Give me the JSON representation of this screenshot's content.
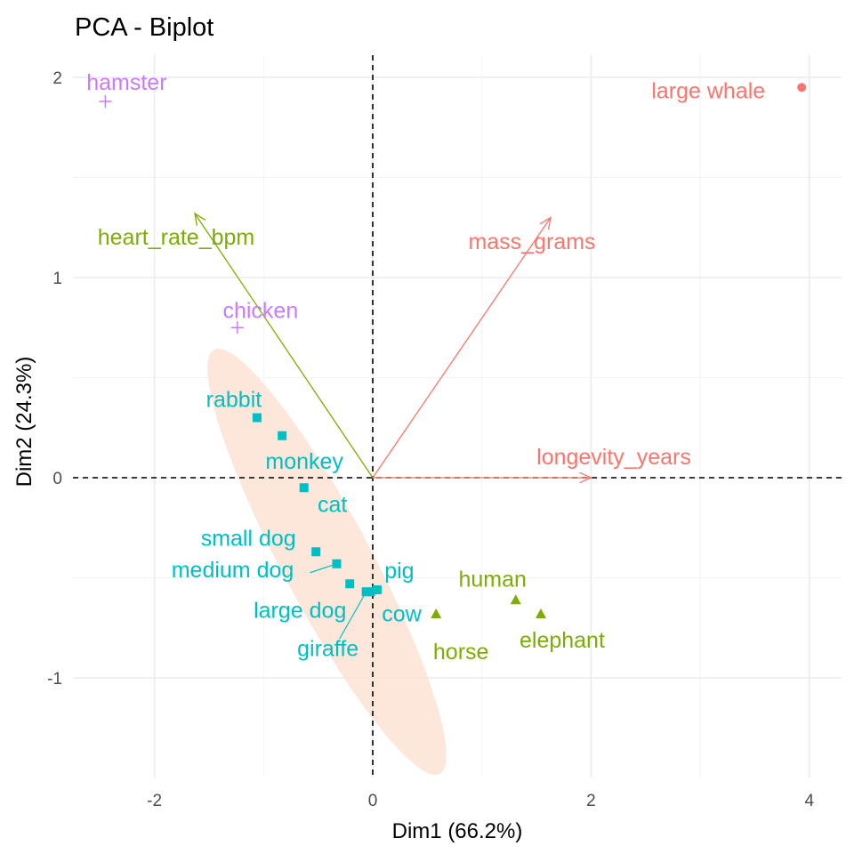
{
  "chart_data": {
    "type": "scatter",
    "title": "PCA - Biplot",
    "xlabel": "Dim1 (66.2%)",
    "ylabel": "Dim2 (24.3%)",
    "xlim": [
      -2.6,
      4.3
    ],
    "ylim": [
      -1.5,
      2.1
    ],
    "x_ticks": [
      -2,
      0,
      2,
      4
    ],
    "y_ticks": [
      -1,
      0,
      1,
      2
    ],
    "grid": true,
    "groups": [
      {
        "color": "#F8766D",
        "marker": "circle"
      },
      {
        "color": "#7CAE00",
        "marker": "triangle"
      },
      {
        "color": "#00BFC4",
        "marker": "square"
      },
      {
        "color": "#C77CFF",
        "marker": "cross"
      }
    ],
    "points": [
      {
        "label": "large whale",
        "x": 3.93,
        "y": 1.95,
        "group": 0
      },
      {
        "label": "hamster",
        "x": -2.45,
        "y": 1.88,
        "group": 3
      },
      {
        "label": "chicken",
        "x": -1.24,
        "y": 0.75,
        "group": 3
      },
      {
        "label": "human",
        "x": 1.31,
        "y": -0.61,
        "group": 1
      },
      {
        "label": "elephant",
        "x": 1.54,
        "y": -0.68,
        "group": 1
      },
      {
        "label": "horse",
        "x": 0.58,
        "y": -0.68,
        "group": 1
      },
      {
        "label": "rabbit",
        "x": -1.06,
        "y": 0.3,
        "group": 2
      },
      {
        "label": "monkey",
        "x": -0.83,
        "y": 0.21,
        "group": 2
      },
      {
        "label": "cat",
        "x": -0.63,
        "y": -0.05,
        "group": 2
      },
      {
        "label": "small dog",
        "x": -0.52,
        "y": -0.37,
        "group": 2
      },
      {
        "label": "medium dog",
        "x": -0.33,
        "y": -0.43,
        "group": 2
      },
      {
        "label": "large dog",
        "x": -0.21,
        "y": -0.53,
        "group": 2
      },
      {
        "label": "giraffe",
        "x": -0.06,
        "y": -0.57,
        "group": 2
      },
      {
        "label": "cow",
        "x": -0.02,
        "y": -0.57,
        "group": 2
      },
      {
        "label": "pig",
        "x": 0.04,
        "y": -0.56,
        "group": 2
      }
    ],
    "variables": [
      {
        "label": "heart_rate_bpm",
        "x": -1.63,
        "y": 1.32,
        "color": "#7CAE00"
      },
      {
        "label": "mass_grams",
        "x": 1.63,
        "y": 1.3,
        "color": "#F8766D"
      },
      {
        "label": "longevity_years",
        "x": 2.0,
        "y": 0.0,
        "color": "#F8766D"
      }
    ],
    "ellipse": {
      "cx": -0.42,
      "cy": -0.42,
      "color": "#FBE3D3"
    }
  }
}
